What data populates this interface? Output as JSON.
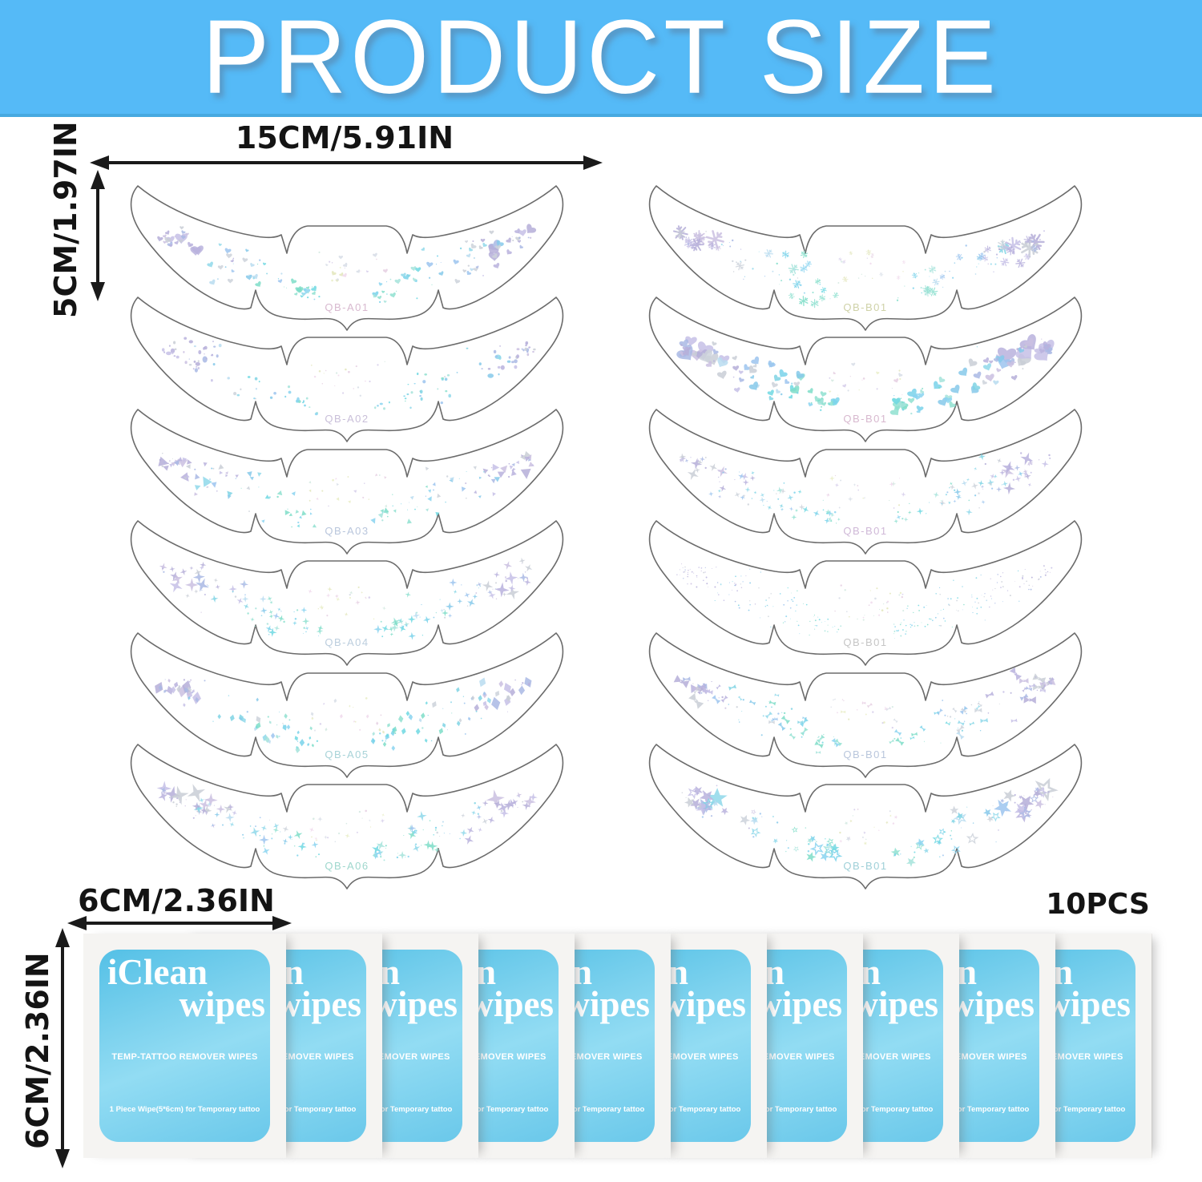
{
  "header": {
    "title": "PRODUCT SIZE",
    "bg_color": "#55baf7",
    "text_color": "#ffffff"
  },
  "dimensions": {
    "sticker_width_label": "15CM/5.91IN",
    "sticker_height_label": "5CM/1.97IN",
    "wipe_width_label": "6CM/2.36IN",
    "wipe_height_label": "6CM/2.36IN",
    "wipes_count_label": "10PCS"
  },
  "stickers": {
    "left_column": [
      {
        "label": "QB-A01",
        "pattern": "hearts",
        "label_color": "#d8b9cf"
      },
      {
        "label": "QB-A02",
        "pattern": "specks",
        "label_color": "#c9bfd9"
      },
      {
        "label": "QB-A03",
        "pattern": "triangles",
        "label_color": "#b9c6dc"
      },
      {
        "label": "QB-A04",
        "pattern": "sparkles",
        "label_color": "#bccede"
      },
      {
        "label": "QB-A05",
        "pattern": "diamonds",
        "label_color": "#a8d3d8"
      },
      {
        "label": "QB-A06",
        "pattern": "stars4big",
        "label_color": "#9fd7cd"
      }
    ],
    "right_column": [
      {
        "label": "QB-B01",
        "pattern": "snowflakes",
        "label_color": "#cfd2a8"
      },
      {
        "label": "QB-B01",
        "pattern": "heartsBig",
        "label_color": "#d8b9cf"
      },
      {
        "label": "QB-B01",
        "pattern": "starsfine",
        "label_color": "#d0b9d8"
      },
      {
        "label": "QB-B01",
        "pattern": "finedots",
        "label_color": "#c6c6c6"
      },
      {
        "label": "QB-B01",
        "pattern": "bows",
        "label_color": "#b9c6dc"
      },
      {
        "label": "QB-B01",
        "pattern": "stars5",
        "label_color": "#9fd0d8"
      }
    ]
  },
  "wipes": {
    "count": 10,
    "brand_top": "iClean",
    "brand_bottom": "wipes",
    "subtitle": "TEMP-TATTOO REMOVER WIPES",
    "footer": "1 Piece Wipe(5*6cm) for Temporary tattoo",
    "label_color": "#64c6ea"
  },
  "palette": {
    "header_blue": "#55baf7",
    "outline_gray": "#6b6b6b",
    "arrow_black": "#1a1a1a",
    "glyph_outer": [
      "#b9b1dd",
      "#c6bfe6",
      "#a9b9e4",
      "#cabfe0",
      "#b5aed8",
      "#c9ced6"
    ],
    "glyph_mid": [
      "#86c9ea",
      "#7fd4e4",
      "#9cc4ee",
      "#b9dcf0",
      "#8fd8ea",
      "#ccd2da"
    ],
    "glyph_inner": [
      "#7eddc8",
      "#8fe0d0",
      "#79d2ea",
      "#a5e3da",
      "#6fd8e2",
      "#8ad4f0"
    ],
    "glyph_pale": [
      "#e5cfe2",
      "#e9edc6",
      "#d5cdea",
      "#d2e9e1",
      "#f0d9ec",
      "#e3e6bc",
      "#d7dde6"
    ]
  }
}
